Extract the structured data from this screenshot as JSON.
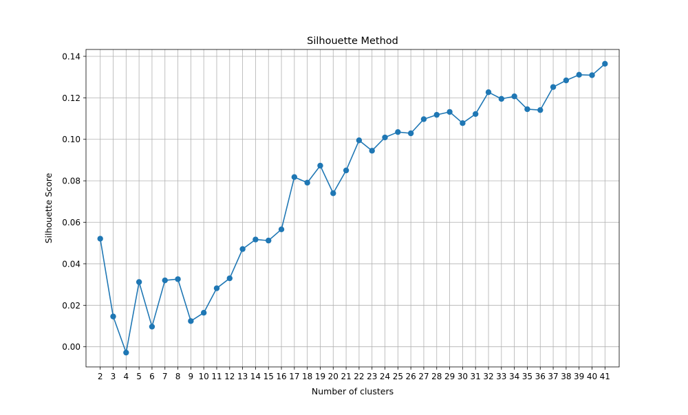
{
  "chart_data": {
    "type": "line",
    "title": "Silhouette Method",
    "xlabel": "Number of clusters",
    "ylabel": "Silhouette Score",
    "x": [
      2,
      3,
      4,
      5,
      6,
      7,
      8,
      9,
      10,
      11,
      12,
      13,
      14,
      15,
      16,
      17,
      18,
      19,
      20,
      21,
      22,
      23,
      24,
      25,
      26,
      27,
      28,
      29,
      30,
      31,
      32,
      33,
      34,
      35,
      36,
      37,
      38,
      39,
      40,
      41
    ],
    "series": [
      {
        "name": "",
        "color": "#1f77b4",
        "marker": "circle",
        "values": [
          0.0521,
          0.0146,
          -0.0028,
          0.0312,
          0.0097,
          0.032,
          0.0326,
          0.0124,
          0.0164,
          0.0282,
          0.033,
          0.0471,
          0.0517,
          0.0512,
          0.0566,
          0.0818,
          0.0791,
          0.0873,
          0.074,
          0.085,
          0.0995,
          0.0945,
          0.1009,
          0.1035,
          0.1029,
          0.1097,
          0.1118,
          0.1132,
          0.1078,
          0.1122,
          0.1227,
          0.1195,
          0.1207,
          0.1145,
          0.1141,
          0.1252,
          0.1284,
          0.1311,
          0.1309,
          0.1364
        ]
      }
    ],
    "xticks": [
      2,
      3,
      4,
      5,
      6,
      7,
      8,
      9,
      10,
      11,
      12,
      13,
      14,
      15,
      16,
      17,
      18,
      19,
      20,
      21,
      22,
      23,
      24,
      25,
      26,
      27,
      28,
      29,
      30,
      31,
      32,
      33,
      34,
      35,
      36,
      37,
      38,
      39,
      40,
      41
    ],
    "yticks": [
      "0.00",
      "0.02",
      "0.04",
      "0.06",
      "0.08",
      "0.10",
      "0.12",
      "0.14"
    ],
    "xlim": [
      0.9,
      42.1
    ],
    "ylim": [
      -0.0097,
      0.1433
    ],
    "grid": true,
    "legend": "none"
  }
}
